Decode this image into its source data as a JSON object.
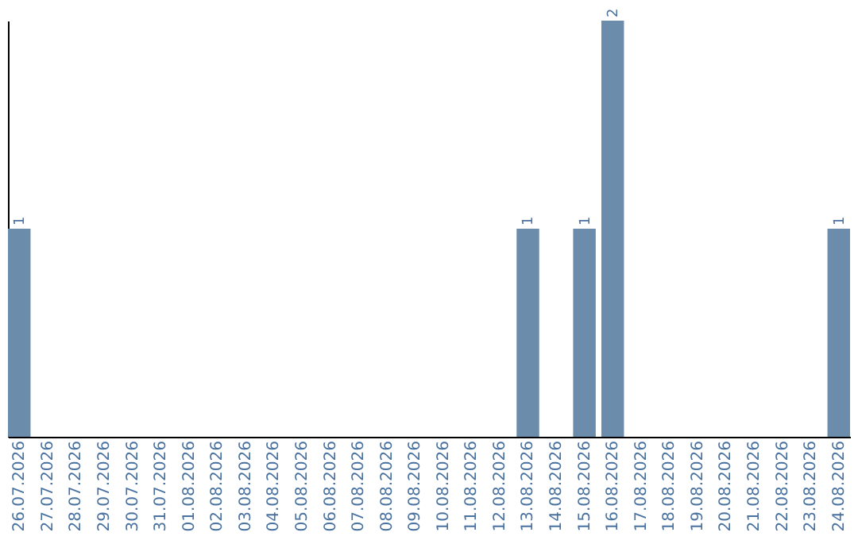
{
  "chart_data": {
    "type": "bar",
    "categories": [
      "26.07.2026",
      "27.07.2026",
      "28.07.2026",
      "29.07.2026",
      "30.07.2026",
      "31.07.2026",
      "01.08.2026",
      "02.08.2026",
      "03.08.2026",
      "04.08.2026",
      "05.08.2026",
      "06.08.2026",
      "07.08.2026",
      "08.08.2026",
      "09.08.2026",
      "10.08.2026",
      "11.08.2026",
      "12.08.2026",
      "13.08.2026",
      "14.08.2026",
      "15.08.2026",
      "16.08.2026",
      "17.08.2026",
      "18.08.2026",
      "19.08.2026",
      "20.08.2026",
      "21.08.2026",
      "22.08.2026",
      "23.08.2026",
      "24.08.2026"
    ],
    "values": [
      1,
      0,
      0,
      0,
      0,
      0,
      0,
      0,
      0,
      0,
      0,
      0,
      0,
      0,
      0,
      0,
      0,
      0,
      1,
      0,
      1,
      2,
      0,
      0,
      0,
      0,
      0,
      0,
      0,
      1
    ],
    "value_labels": [
      "1",
      null,
      null,
      null,
      null,
      null,
      null,
      null,
      null,
      null,
      null,
      null,
      null,
      null,
      null,
      null,
      null,
      null,
      "1",
      null,
      "1",
      "2",
      null,
      null,
      null,
      null,
      null,
      null,
      null,
      "1"
    ],
    "color": "#6b8cab",
    "tick_labels": "x"
  }
}
